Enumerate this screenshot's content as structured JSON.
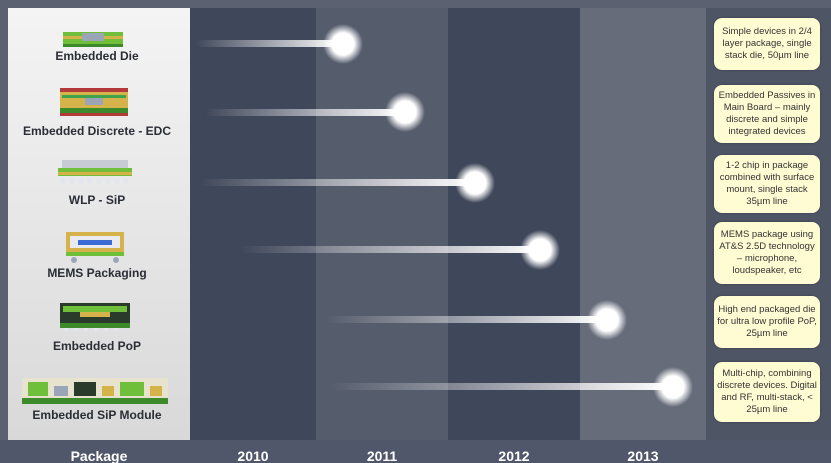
{
  "packages": [
    {
      "label": "Embedded Die",
      "description": "Simple devices in 2/4 layer package, single stack die, 50µm line",
      "timeline_end": "2011"
    },
    {
      "label": "Embedded Discrete - EDC",
      "description": "Embedded Passives in Main Board – mainly discrete and simple integrated devices",
      "timeline_end": "2011"
    },
    {
      "label": "WLP  - SiP",
      "description": "1-2 chip in package combined with surface mount, single stack 35µm line",
      "timeline_end": "2012"
    },
    {
      "label": "MEMS Packaging",
      "description": "MEMS package using AT&S 2.5D technology – microphone, loudspeaker, etc",
      "timeline_end": "2012"
    },
    {
      "label": "Embedded PoP",
      "description": "High end packaged die for ultra low profile PoP, 25µm line",
      "timeline_end": "2013"
    },
    {
      "label": "Embedded SiP Module",
      "description": "Multi-chip, combining discrete devices. Digital and RF, multi-stack, < 25µm line",
      "timeline_end": "2013"
    }
  ],
  "axis": {
    "package_label": "Package",
    "years": [
      "2010",
      "2011",
      "2012",
      "2013"
    ]
  },
  "colors": {
    "column_dark": "#3e4658",
    "column_light": "#5f6675",
    "label_panel": "#f0f0f0",
    "desc_box": "#fffbd2"
  }
}
